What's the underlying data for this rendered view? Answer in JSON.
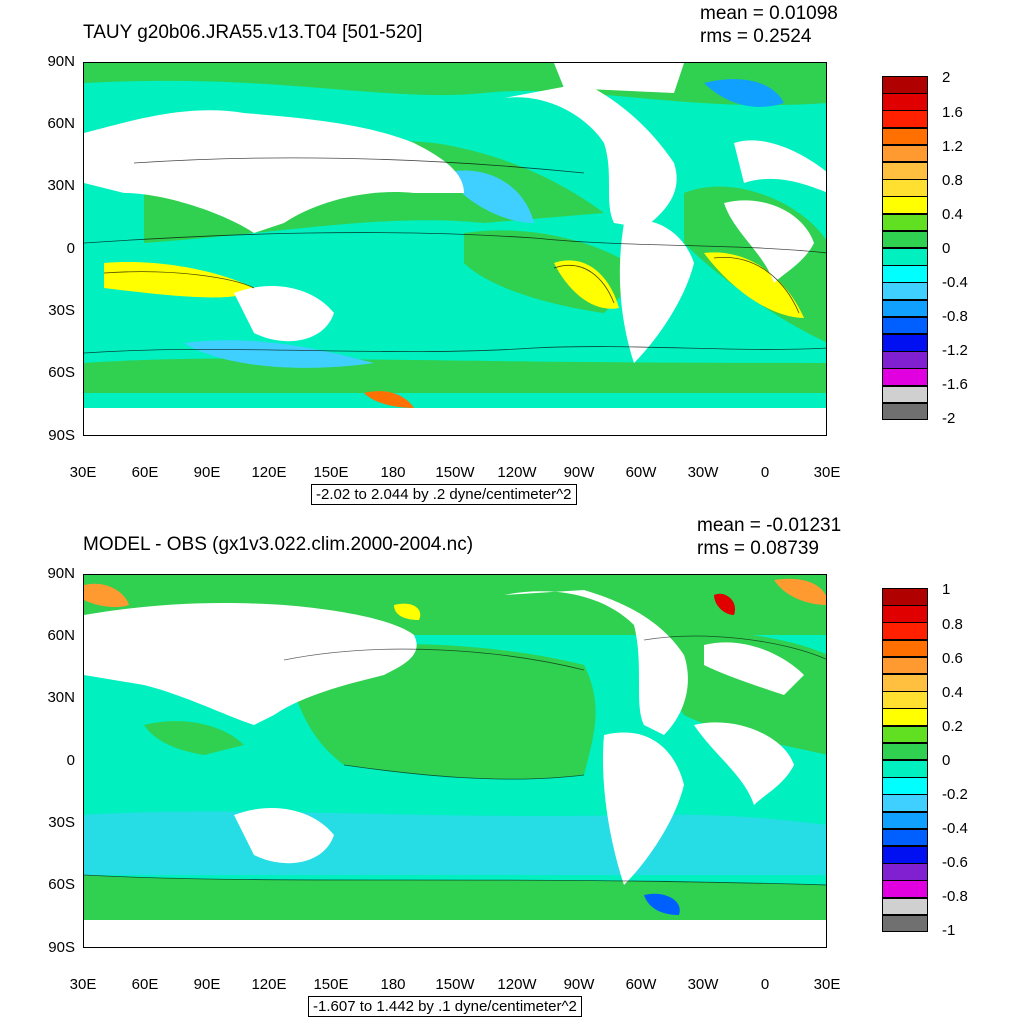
{
  "panels": [
    {
      "title": "TAUY g20b06.JRA55.v13.T04 [501-520]",
      "mean": "mean = 0.01098",
      "rms": "rms = 0.2524",
      "contour_note": "-2.02 to 2.044 by .2 dyne/centimeter^2",
      "colorbar_labels": [
        "2",
        "1.6",
        "1.2",
        "0.8",
        "0.4",
        "0",
        "-0.4",
        "-0.8",
        "-1.2",
        "-1.6",
        "-2"
      ],
      "colorbar_colors": [
        "#b00000",
        "#e00000",
        "#ff2000",
        "#ff7000",
        "#ff9a30",
        "#ffc040",
        "#ffe030",
        "#ffff00",
        "#60e020",
        "#30d050",
        "#00f0c0",
        "#00ffff",
        "#40d0ff",
        "#10a0ff",
        "#0060ff",
        "#0010f0",
        "#8020d0",
        "#e000e0",
        "#d0d0d0",
        "#707070"
      ]
    },
    {
      "title": "MODEL - OBS (gx1v3.022.clim.2000-2004.nc)",
      "mean": "mean = -0.01231",
      "rms": "rms = 0.08739",
      "contour_note": "-1.607 to 1.442 by .1 dyne/centimeter^2",
      "colorbar_labels": [
        "1",
        "0.8",
        "0.6",
        "0.4",
        "0.2",
        "0",
        "-0.2",
        "-0.4",
        "-0.6",
        "-0.8",
        "-1"
      ],
      "colorbar_colors": [
        "#b00000",
        "#e00000",
        "#ff2000",
        "#ff7000",
        "#ff9a30",
        "#ffc040",
        "#ffe030",
        "#ffff00",
        "#60e020",
        "#30d050",
        "#00f0c0",
        "#00ffff",
        "#40d0ff",
        "#10a0ff",
        "#0060ff",
        "#0010f0",
        "#8020d0",
        "#e000e0",
        "#d0d0d0",
        "#707070"
      ]
    }
  ],
  "lat_labels": [
    "90N",
    "60N",
    "30N",
    "0",
    "30S",
    "60S",
    "90S"
  ],
  "lon_labels": [
    "30E",
    "60E",
    "90E",
    "120E",
    "150E",
    "180",
    "150W",
    "120W",
    "90W",
    "60W",
    "30W",
    "0",
    "30E"
  ]
}
